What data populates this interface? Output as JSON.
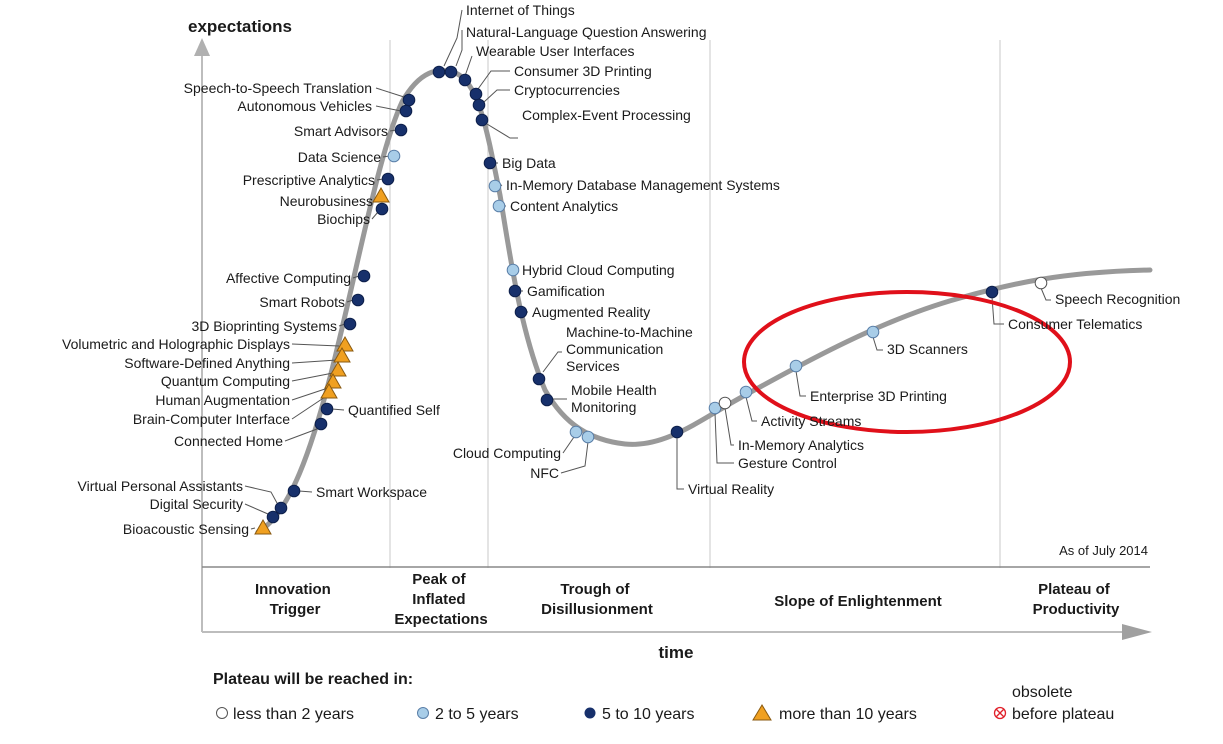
{
  "axes": {
    "y_label": "expectations",
    "x_label": "time"
  },
  "as_of": "As of July 2014",
  "phases": [
    {
      "id": "innovation-trigger",
      "lines": [
        "Innovation",
        "Trigger"
      ]
    },
    {
      "id": "peak",
      "lines": [
        "Peak of",
        "Inflated",
        "Expectations"
      ]
    },
    {
      "id": "trough",
      "lines": [
        "Trough of",
        "Disillusionment"
      ]
    },
    {
      "id": "slope",
      "lines": [
        "Slope of Enlightenment"
      ]
    },
    {
      "id": "plateau",
      "lines": [
        "Plateau of",
        "Productivity"
      ]
    }
  ],
  "categories": {
    "lt2": {
      "label": "less than 2 years",
      "marker": "circle",
      "color": "#ffffff"
    },
    "2to5": {
      "label": "2 to 5 years",
      "marker": "circle",
      "color": "#a8cde8"
    },
    "5to10": {
      "label": "5 to 10 years",
      "marker": "circle",
      "color": "#17306b"
    },
    "gt10": {
      "label": "more than 10 years",
      "marker": "triangle",
      "color": "#f0a020"
    },
    "obs": {
      "label": "obsolete before plateau",
      "lines": [
        "obsolete",
        "before plateau"
      ],
      "marker": "x-circle",
      "color": "#e0202a"
    }
  },
  "legend": {
    "title": "Plateau will be reached in:"
  },
  "colors": {
    "curve": "#999999",
    "highlight": "#e0101a",
    "marker_stroke": "#5a7fa8"
  },
  "technologies": [
    {
      "name": "Internet of Things",
      "plateau": "5to10"
    },
    {
      "name": "Natural-Language Question Answering",
      "plateau": "5to10"
    },
    {
      "name": "Wearable User Interfaces",
      "plateau": "5to10"
    },
    {
      "name": "Consumer 3D Printing",
      "plateau": "5to10"
    },
    {
      "name": "Cryptocurrencies",
      "plateau": "5to10"
    },
    {
      "name": "Complex-Event Processing",
      "plateau": "5to10"
    },
    {
      "name": "Speech-to-Speech Translation",
      "plateau": "5to10"
    },
    {
      "name": "Autonomous Vehicles",
      "plateau": "5to10"
    },
    {
      "name": "Smart Advisors",
      "plateau": "5to10"
    },
    {
      "name": "Data Science",
      "plateau": "2to5"
    },
    {
      "name": "Prescriptive Analytics",
      "plateau": "5to10"
    },
    {
      "name": "Neurobusiness",
      "plateau": "gt10"
    },
    {
      "name": "Biochips",
      "plateau": "5to10"
    },
    {
      "name": "Affective  Computing",
      "plateau": "5to10"
    },
    {
      "name": "Smart Robots",
      "plateau": "5to10"
    },
    {
      "name": "3D Bioprinting Systems",
      "plateau": "5to10"
    },
    {
      "name": "Volumetric and Holographic Displays",
      "plateau": "gt10"
    },
    {
      "name": "Software-Defined Anything",
      "plateau": "gt10"
    },
    {
      "name": "Quantum Computing",
      "plateau": "gt10"
    },
    {
      "name": "Human Augmentation",
      "plateau": "gt10"
    },
    {
      "name": "Brain-Computer Interface",
      "plateau": "gt10"
    },
    {
      "name": "Quantified Self",
      "plateau": "5to10"
    },
    {
      "name": "Connected Home",
      "plateau": "5to10"
    },
    {
      "name": "Smart Workspace",
      "plateau": "5to10"
    },
    {
      "name": "Virtual Personal Assistants",
      "plateau": "5to10"
    },
    {
      "name": "Digital Security",
      "plateau": "5to10"
    },
    {
      "name": "Bioacoustic Sensing",
      "plateau": "gt10"
    },
    {
      "name": "Big Data",
      "plateau": "5to10"
    },
    {
      "name": "In-Memory Database Management Systems",
      "plateau": "2to5"
    },
    {
      "name": "Content Analytics",
      "plateau": "2to5"
    },
    {
      "name": "Hybrid Cloud Computing",
      "plateau": "2to5"
    },
    {
      "name": "Gamification",
      "plateau": "5to10"
    },
    {
      "name": "Augmented Reality",
      "plateau": "5to10"
    },
    {
      "name": "Machine-to-Machine Communication Services",
      "lines": [
        "Machine-to-Machine",
        "Communication",
        "Services"
      ],
      "plateau": "5to10"
    },
    {
      "name": "Mobile Health Monitoring",
      "lines": [
        "Mobile Health",
        "Monitoring"
      ],
      "plateau": "5to10"
    },
    {
      "name": "Cloud Computing",
      "plateau": "2to5"
    },
    {
      "name": "NFC",
      "plateau": "2to5"
    },
    {
      "name": "Virtual Reality",
      "plateau": "5to10"
    },
    {
      "name": "Gesture Control",
      "plateau": "2to5"
    },
    {
      "name": "In-Memory Analytics",
      "plateau": "lt2"
    },
    {
      "name": "Activity Streams",
      "plateau": "2to5"
    },
    {
      "name": "Enterprise 3D Printing",
      "plateau": "2to5"
    },
    {
      "name": "3D Scanners",
      "plateau": "2to5"
    },
    {
      "name": "Consumer Telematics",
      "plateau": "5to10"
    },
    {
      "name": "Speech Recognition",
      "plateau": "lt2"
    }
  ]
}
